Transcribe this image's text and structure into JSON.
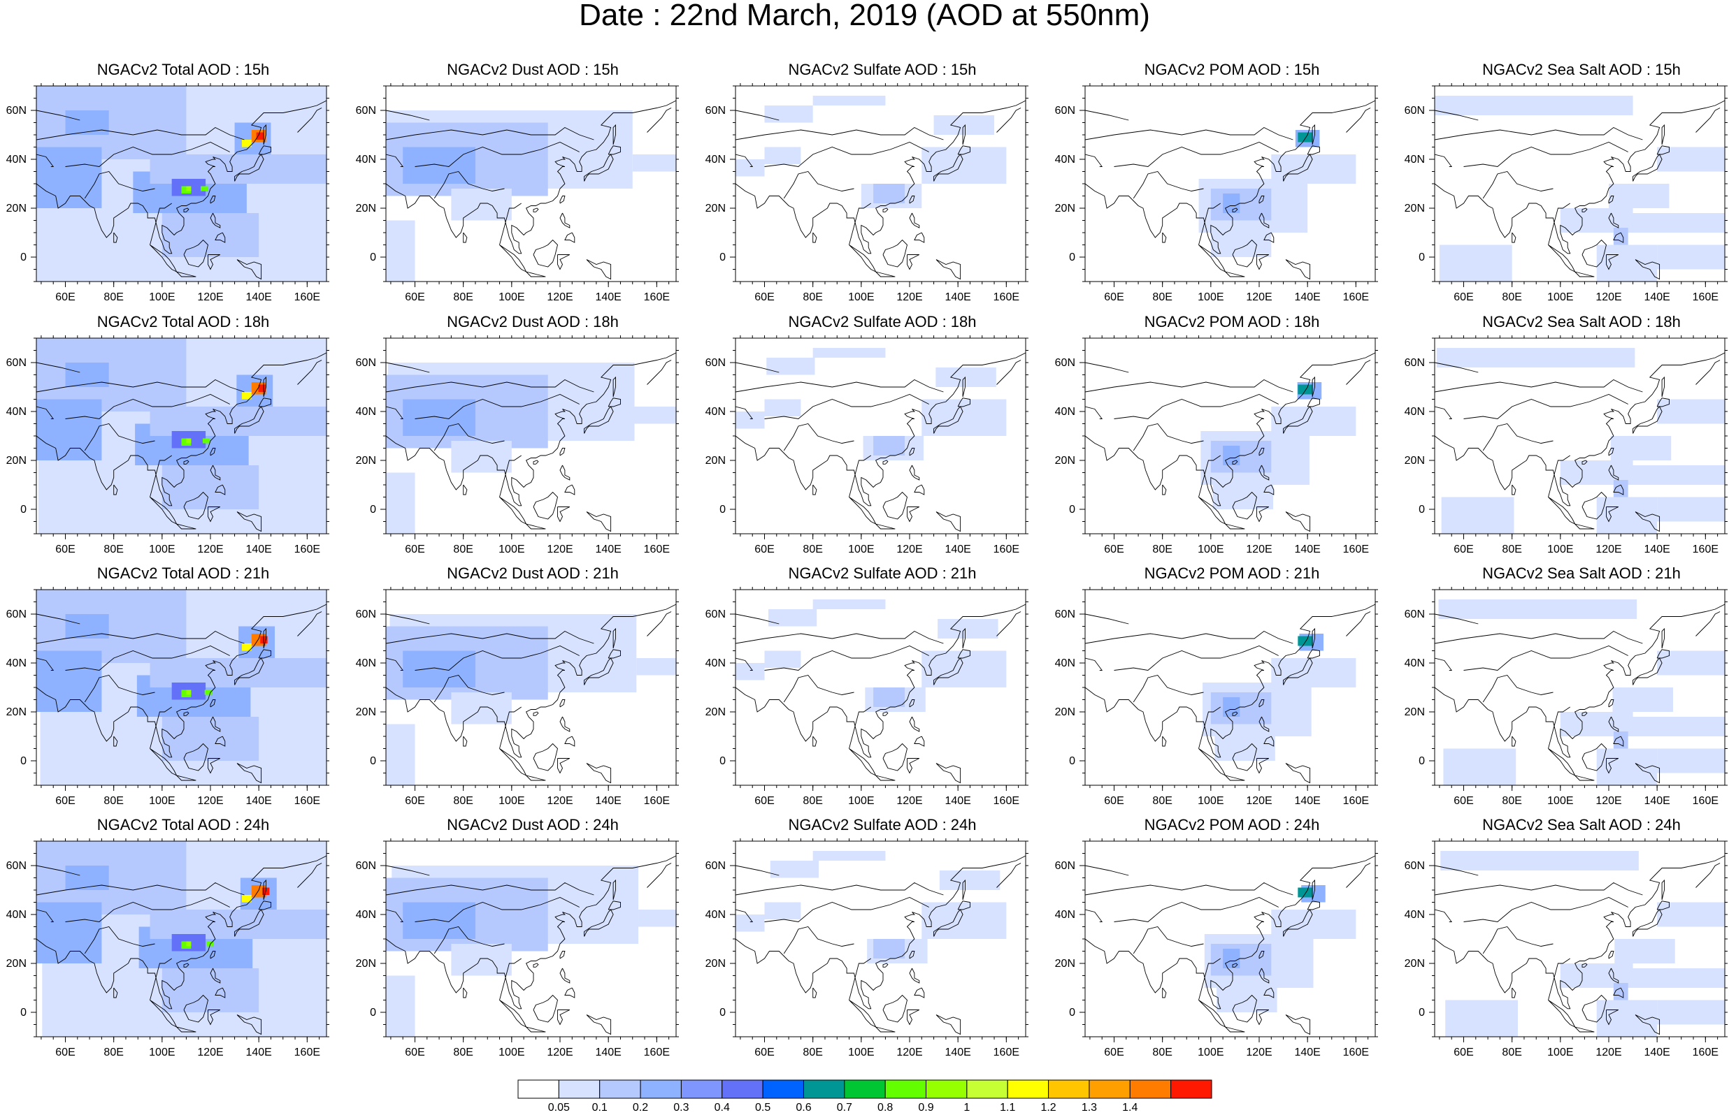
{
  "title": "Date : 22nd March, 2019 (AOD at 550nm)",
  "map_axes": {
    "x_ticks": [
      "60E",
      "80E",
      "100E",
      "120E",
      "140E",
      "160E"
    ],
    "y_ticks": [
      "60N",
      "40N",
      "20N",
      "0"
    ],
    "lon_range": [
      48,
      168
    ],
    "lat_range": [
      -10,
      70
    ]
  },
  "panels": [
    {
      "title": "NGACv2 Total AOD : 15h",
      "species": "total",
      "hour": "15h"
    },
    {
      "title": "NGACv2 Dust AOD : 15h",
      "species": "dust",
      "hour": "15h"
    },
    {
      "title": "NGACv2 Sulfate AOD : 15h",
      "species": "sulfate",
      "hour": "15h"
    },
    {
      "title": "NGACv2 POM AOD : 15h",
      "species": "pom",
      "hour": "15h"
    },
    {
      "title": "NGACv2 Sea Salt AOD : 15h",
      "species": "seasalt",
      "hour": "15h"
    },
    {
      "title": "NGACv2 Total AOD : 18h",
      "species": "total",
      "hour": "18h"
    },
    {
      "title": "NGACv2 Dust AOD : 18h",
      "species": "dust",
      "hour": "18h"
    },
    {
      "title": "NGACv2 Sulfate AOD : 18h",
      "species": "sulfate",
      "hour": "18h"
    },
    {
      "title": "NGACv2 POM AOD : 18h",
      "species": "pom",
      "hour": "18h"
    },
    {
      "title": "NGACv2 Sea Salt AOD : 18h",
      "species": "seasalt",
      "hour": "18h"
    },
    {
      "title": "NGACv2 Total AOD : 21h",
      "species": "total",
      "hour": "21h"
    },
    {
      "title": "NGACv2 Dust AOD : 21h",
      "species": "dust",
      "hour": "21h"
    },
    {
      "title": "NGACv2 Sulfate AOD : 21h",
      "species": "sulfate",
      "hour": "21h"
    },
    {
      "title": "NGACv2 POM AOD : 21h",
      "species": "pom",
      "hour": "21h"
    },
    {
      "title": "NGACv2 Sea Salt AOD : 21h",
      "species": "seasalt",
      "hour": "21h"
    },
    {
      "title": "NGACv2 Total AOD : 24h",
      "species": "total",
      "hour": "24h"
    },
    {
      "title": "NGACv2 Dust AOD : 24h",
      "species": "dust",
      "hour": "24h"
    },
    {
      "title": "NGACv2 Sulfate AOD : 24h",
      "species": "sulfate",
      "hour": "24h"
    },
    {
      "title": "NGACv2 POM AOD : 24h",
      "species": "pom",
      "hour": "24h"
    },
    {
      "title": "NGACv2 Sea Salt  AOD : 24h",
      "species": "seasalt",
      "hour": "24h"
    }
  ],
  "colorbar": {
    "labels": [
      "0.05",
      "0.1",
      "0.2",
      "0.3",
      "0.4",
      "0.5",
      "0.6",
      "0.7",
      "0.8",
      "0.9",
      "1",
      "1.1",
      "1.2",
      "1.3",
      "1.4"
    ],
    "colors": [
      "#ffffff",
      "#d6e2ff",
      "#b5c9ff",
      "#8eb2ff",
      "#7f96ff",
      "#6370f8",
      "#0063ff",
      "#009696",
      "#00c633",
      "#63ff00",
      "#96ff00",
      "#c6ff33",
      "#ffff00",
      "#ffc600",
      "#ffa000",
      "#ff7c00",
      "#ff1900"
    ]
  },
  "colors": {
    "background": "#ffffff",
    "coastline": "#000000"
  }
}
